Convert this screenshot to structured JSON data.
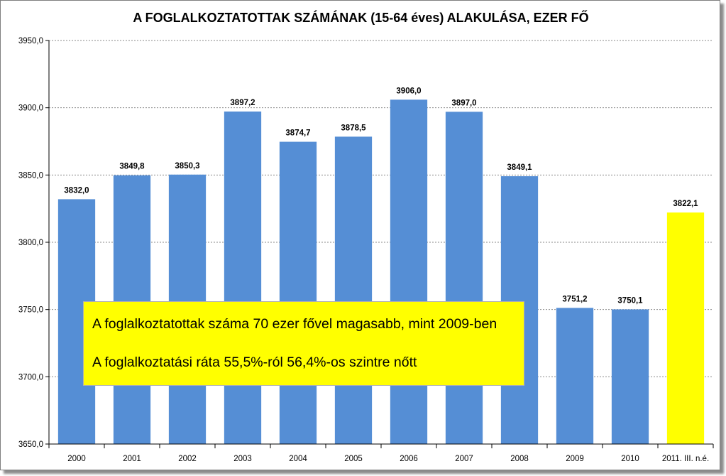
{
  "chart_data": {
    "type": "bar",
    "title": "A FOGLALKOZTATOTTAK SZÁMÁNAK (15-64 éves) ALAKULÁSA, EZER FŐ",
    "categories": [
      "2000",
      "2001",
      "2002",
      "2003",
      "2004",
      "2005",
      "2006",
      "2007",
      "2008",
      "2009",
      "2010",
      "2011. III. n.é."
    ],
    "values": [
      3832.0,
      3849.8,
      3850.3,
      3897.2,
      3874.7,
      3878.5,
      3906.0,
      3897.0,
      3849.1,
      3751.2,
      3750.1,
      3822.1
    ],
    "value_labels": [
      "3832,0",
      "3849,8",
      "3850,3",
      "3897,2",
      "3874,7",
      "3878,5",
      "3906,0",
      "3897,0",
      "3849,1",
      "3751,2",
      "3750,1",
      "3822,1"
    ],
    "ylim": [
      3650,
      3950
    ],
    "yticks": [
      3650,
      3700,
      3750,
      3800,
      3850,
      3900,
      3950
    ],
    "ytick_labels": [
      "3650,0",
      "3700,0",
      "3750,0",
      "3800,0",
      "3850,0",
      "3900,0",
      "3950,0"
    ],
    "grid": true,
    "bar_color": "#558ed5",
    "highlight_color": "#ffff00",
    "highlight_index": 11,
    "xlabel": "",
    "ylabel": ""
  },
  "annotation": {
    "line1": "A foglalkoztatottak száma 70 ezer fővel magasabb, mint 2009-ben",
    "line2": "A foglalkoztatási ráta 55,5%-ról 56,4%-os szintre nőtt",
    "background": "#ffff00"
  }
}
